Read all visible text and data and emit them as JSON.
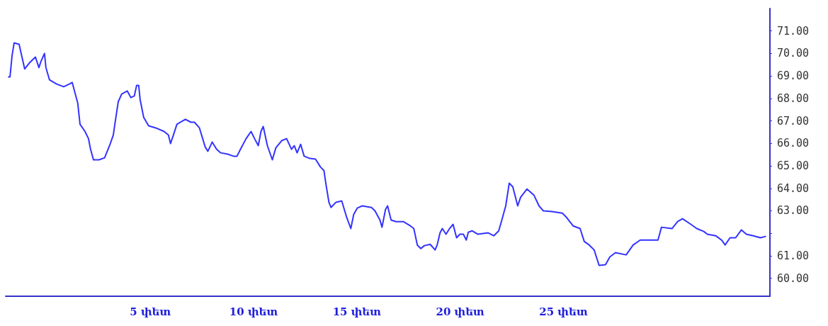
{
  "chart_data": {
    "type": "line",
    "xlim": [
      -2,
      35
    ],
    "ylim": [
      59.2,
      72
    ],
    "xticks": [
      {
        "value": 5,
        "label": "5 փետ"
      },
      {
        "value": 10,
        "label": "10 փետ"
      },
      {
        "value": 15,
        "label": "15 փետ"
      },
      {
        "value": 20,
        "label": "20 փետ"
      },
      {
        "value": 25,
        "label": "25 փետ"
      }
    ],
    "yticks": [
      {
        "value": 60,
        "label": "60.00"
      },
      {
        "value": 61,
        "label": "61.00"
      },
      {
        "value": 62,
        "label": null
      },
      {
        "value": 63,
        "label": "63.00"
      },
      {
        "value": 64,
        "label": "64.00"
      },
      {
        "value": 65,
        "label": "65.00"
      },
      {
        "value": 66,
        "label": "66.00"
      },
      {
        "value": 67,
        "label": "67.00"
      },
      {
        "value": 68,
        "label": "68.00"
      },
      {
        "value": 69,
        "label": "69.00"
      },
      {
        "value": 70,
        "label": "70.00"
      },
      {
        "value": 71,
        "label": "71.00"
      }
    ],
    "grid": false,
    "marker": "none",
    "line_style": "solid",
    "series": [
      {
        "color": "#3333ff",
        "x": [
          -1.86,
          -1.79,
          -1.69,
          -1.59,
          -1.35,
          -1.08,
          -0.84,
          -0.56,
          -0.39,
          -0.29,
          -0.12,
          -0.05,
          0.12,
          0.47,
          0.81,
          1.08,
          1.22,
          1.49,
          1.6,
          1.84,
          2.01,
          2.11,
          2.25,
          2.52,
          2.79,
          3.03,
          3.21,
          3.31,
          3.45,
          3.62,
          3.89,
          4.06,
          4.23,
          4.34,
          4.44,
          4.51,
          4.68,
          4.92,
          5.26,
          5.67,
          5.88,
          5.98,
          6.12,
          6.29,
          6.7,
          6.97,
          7.14,
          7.38,
          7.66,
          7.79,
          8,
          8.21,
          8.41,
          8.75,
          9.03,
          9.2,
          9.37,
          9.64,
          9.88,
          10.05,
          10.23,
          10.36,
          10.47,
          10.67,
          10.91,
          11.08,
          11.36,
          11.6,
          11.84,
          11.97,
          12.11,
          12.28,
          12.45,
          12.73,
          13,
          13.24,
          13.41,
          13.51,
          13.65,
          13.75,
          13.99,
          14.27,
          14.51,
          14.71,
          14.85,
          15.02,
          15.26,
          15.71,
          15.88,
          16.12,
          16.22,
          16.39,
          16.49,
          16.66,
          16.9,
          17.25,
          17.59,
          17.76,
          17.93,
          18.1,
          18.27,
          18.55,
          18.79,
          18.89,
          19.03,
          19.14,
          19.32,
          19.49,
          19.66,
          19.83,
          19.99,
          20.16,
          20.3,
          20.4,
          20.58,
          20.85,
          21.36,
          21.63,
          21.87,
          22.04,
          22.21,
          22.38,
          22.55,
          22.79,
          22.93,
          23.24,
          23.58,
          23.82,
          24.03,
          24.44,
          24.95,
          25.12,
          25.47,
          25.81,
          26.01,
          26.25,
          26.49,
          26.73,
          27.04,
          27.25,
          27.52,
          28.04,
          28.38,
          28.72,
          29.06,
          29.58,
          29.75,
          30.26,
          30.53,
          30.77,
          31.12,
          31.46,
          31.8,
          31.97,
          32.38,
          32.66,
          32.83,
          33.07,
          33.34,
          33.62,
          33.86,
          34.2,
          34.54,
          34.78
        ],
        "values": [
          68.96,
          68.96,
          69.91,
          70.47,
          70.41,
          69.31,
          69.59,
          69.84,
          69.37,
          69.65,
          70,
          69.37,
          68.83,
          68.64,
          68.52,
          68.64,
          68.71,
          67.79,
          66.85,
          66.53,
          66.21,
          65.74,
          65.27,
          65.27,
          65.36,
          65.9,
          66.37,
          67,
          67.85,
          68.2,
          68.33,
          68.04,
          68.11,
          68.58,
          68.58,
          67.95,
          67.16,
          66.78,
          66.69,
          66.53,
          66.37,
          65.99,
          66.37,
          66.85,
          67.07,
          66.94,
          66.94,
          66.69,
          65.84,
          65.65,
          66.06,
          65.74,
          65.58,
          65.52,
          65.43,
          65.43,
          65.74,
          66.21,
          66.53,
          66.21,
          65.9,
          66.53,
          66.75,
          65.9,
          65.27,
          65.8,
          66.12,
          66.21,
          65.74,
          65.9,
          65.58,
          65.96,
          65.43,
          65.33,
          65.3,
          64.95,
          64.79,
          64.16,
          63.38,
          63.15,
          63.38,
          63.44,
          62.71,
          62.21,
          62.84,
          63.12,
          63.22,
          63.15,
          63,
          62.59,
          62.27,
          63.06,
          63.22,
          62.59,
          62.52,
          62.52,
          62.33,
          62.21,
          61.48,
          61.32,
          61.45,
          61.51,
          61.26,
          61.48,
          62.02,
          62.21,
          61.96,
          62.21,
          62.4,
          61.8,
          61.96,
          61.96,
          61.7,
          62.05,
          62.11,
          61.96,
          62.02,
          61.89,
          62.11,
          62.65,
          63.22,
          64.23,
          64.07,
          63.22,
          63.6,
          63.97,
          63.69,
          63.22,
          63,
          62.97,
          62.9,
          62.74,
          62.33,
          62.21,
          61.64,
          61.48,
          61.26,
          60.57,
          60.6,
          60.95,
          61.14,
          61.04,
          61.48,
          61.7,
          61.7,
          61.7,
          62.27,
          62.21,
          62.52,
          62.65,
          62.43,
          62.21,
          62.08,
          61.96,
          61.89,
          61.7,
          61.48,
          61.8,
          61.8,
          62.15,
          61.96,
          61.89,
          61.8,
          61.86
        ]
      }
    ]
  }
}
